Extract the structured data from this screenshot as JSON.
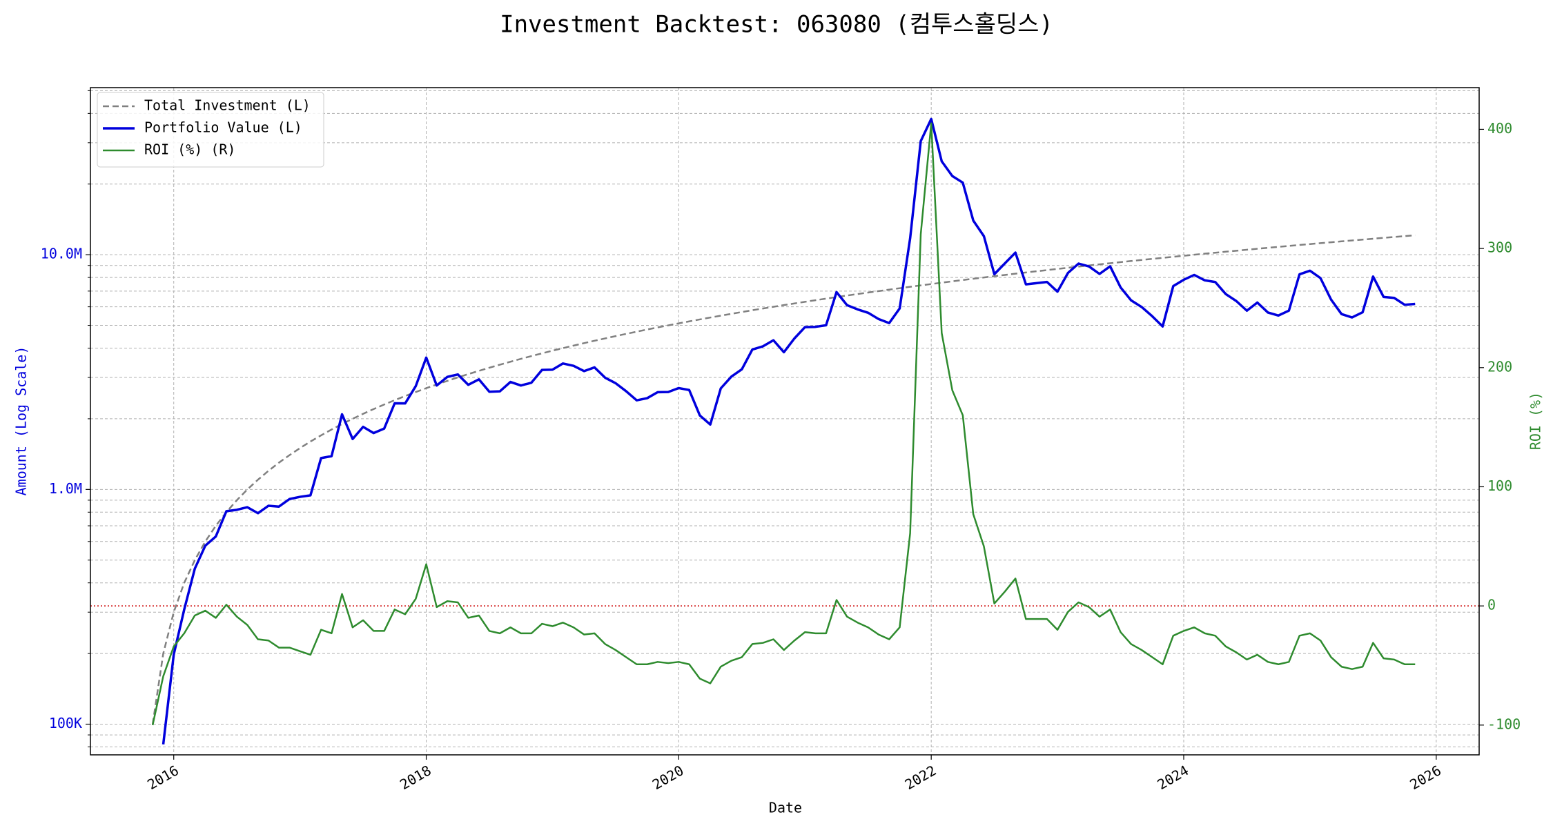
{
  "chart_data": {
    "type": "line",
    "title": "Investment Backtest: 063080 (컴투스홀딩스)",
    "xlabel": "Date",
    "ylabel": "Amount (Log Scale)",
    "y2label": "ROI (%)",
    "yscale": "log",
    "grid": true,
    "legend": "upper left",
    "xlim": [
      2015.34,
      2026.34
    ],
    "xticks": [
      2016,
      2018,
      2020,
      2022,
      2024,
      2026
    ],
    "ylim": [
      74000,
      51500000
    ],
    "yticks": [
      {
        "value": 100000,
        "label": "100K"
      },
      {
        "value": 1000000,
        "label": "1.0M"
      },
      {
        "value": 10000000,
        "label": "10.0M"
      }
    ],
    "y_minor_ticks": [
      80000,
      90000,
      200000,
      300000,
      400000,
      500000,
      600000,
      700000,
      800000,
      900000,
      2000000,
      3000000,
      4000000,
      5000000,
      6000000,
      7000000,
      8000000,
      9000000,
      20000000,
      30000000,
      40000000,
      50000000
    ],
    "y2lim": [
      -125,
      435
    ],
    "y2ticks": [
      -100,
      0,
      100,
      200,
      300,
      400
    ],
    "reference_line": {
      "value": 0,
      "axis": "y2",
      "color": "#cc0000"
    },
    "x": [
      2015.833,
      2015.917,
      2016,
      2016.083,
      2016.167,
      2016.25,
      2016.333,
      2016.417,
      2016.5,
      2016.583,
      2016.667,
      2016.75,
      2016.833,
      2016.917,
      2017,
      2017.083,
      2017.167,
      2017.25,
      2017.333,
      2017.417,
      2017.5,
      2017.583,
      2017.667,
      2017.75,
      2017.833,
      2017.917,
      2018,
      2018.083,
      2018.167,
      2018.25,
      2018.333,
      2018.417,
      2018.5,
      2018.583,
      2018.667,
      2018.75,
      2018.833,
      2018.917,
      2019,
      2019.083,
      2019.167,
      2019.25,
      2019.333,
      2019.417,
      2019.5,
      2019.583,
      2019.667,
      2019.75,
      2019.833,
      2019.917,
      2020,
      2020.083,
      2020.167,
      2020.25,
      2020.333,
      2020.417,
      2020.5,
      2020.583,
      2020.667,
      2020.75,
      2020.833,
      2020.917,
      2021,
      2021.083,
      2021.167,
      2021.25,
      2021.333,
      2021.417,
      2021.5,
      2021.583,
      2021.667,
      2021.75,
      2021.833,
      2021.917,
      2022,
      2022.083,
      2022.167,
      2022.25,
      2022.333,
      2022.417,
      2022.5,
      2022.583,
      2022.667,
      2022.75,
      2022.833,
      2022.917,
      2023,
      2023.083,
      2023.167,
      2023.25,
      2023.333,
      2023.417,
      2023.5,
      2023.583,
      2023.667,
      2023.75,
      2023.833,
      2023.917,
      2024,
      2024.083,
      2024.167,
      2024.25,
      2024.333,
      2024.417,
      2024.5,
      2024.583,
      2024.667,
      2024.75,
      2024.833,
      2024.917,
      2025,
      2025.083,
      2025.167,
      2025.25,
      2025.333,
      2025.417,
      2025.5,
      2025.583,
      2025.667,
      2025.75,
      2025.833
    ],
    "series": [
      {
        "name": "Total Investment (L)",
        "color": "#808080",
        "linestyle": "dashed",
        "axis": "y",
        "values": [
          100000,
          200000,
          300000,
          400000,
          500000,
          600000,
          700000,
          800000,
          900000,
          1000000,
          1100000,
          1200000,
          1300000,
          1400000,
          1500000,
          1600000,
          1700000,
          1800000,
          1900000,
          2000000,
          2100000,
          2200000,
          2300000,
          2400000,
          2500000,
          2600000,
          2700000,
          2800000,
          2900000,
          3000000,
          3100000,
          3200000,
          3300000,
          3400000,
          3500000,
          3600000,
          3700000,
          3800000,
          3900000,
          4000000,
          4100000,
          4200000,
          4300000,
          4400000,
          4500000,
          4600000,
          4700000,
          4800000,
          4900000,
          5000000,
          5100000,
          5200000,
          5300000,
          5400000,
          5500000,
          5600000,
          5700000,
          5800000,
          5900000,
          6000000,
          6100000,
          6200000,
          6300000,
          6400000,
          6500000,
          6600000,
          6700000,
          6800000,
          6900000,
          7000000,
          7100000,
          7200000,
          7300000,
          7400000,
          7500000,
          7600000,
          7700000,
          7800000,
          7900000,
          8000000,
          8100000,
          8200000,
          8300000,
          8400000,
          8500000,
          8600000,
          8700000,
          8800000,
          8900000,
          9000000,
          9100000,
          9200000,
          9300000,
          9400000,
          9500000,
          9600000,
          9700000,
          9800000,
          9900000,
          10000000,
          10100000,
          10200000,
          10300000,
          10400000,
          10500000,
          10600000,
          10700000,
          10800000,
          10900000,
          11000000,
          11100000,
          11200000,
          11300000,
          11400000,
          11500000,
          11600000,
          11700000,
          11800000,
          11900000,
          12000000,
          12100000
        ]
      },
      {
        "name": "Portfolio Value (L)",
        "color": "#0000dd",
        "linestyle": "solid",
        "axis": "y",
        "values": [
          null,
          82000,
          198000,
          308000,
          460000,
          576000,
          630000,
          808000,
          819000,
          840000,
          792000,
          852000,
          845000,
          910000,
          930000,
          944000,
          1360000,
          1386000,
          2090000,
          1640000,
          1848000,
          1738000,
          1817000,
          2328000,
          2325000,
          2756000,
          3645000,
          2772000,
          3016000,
          3090000,
          2790000,
          2944000,
          2607000,
          2618000,
          2870000,
          2772000,
          2849000,
          3230000,
          3237000,
          3440000,
          3362000,
          3192000,
          3311000,
          2992000,
          2835000,
          2622000,
          2397000,
          2448000,
          2597000,
          2600000,
          2703000,
          2652000,
          2067000,
          1890000,
          2695000,
          3024000,
          3249000,
          3944000,
          4071000,
          4320000,
          3843000,
          4402000,
          4914000,
          4928000,
          5005000,
          6930000,
          6097000,
          5848000,
          5658000,
          5320000,
          5112000,
          5904000,
          11753000,
          30488000,
          37875000,
          25004000,
          21637000,
          20280000,
          13983000,
          12000000,
          8262000,
          9184000,
          10209000,
          7476000,
          7565000,
          7654000,
          6960000,
          8360000,
          9167000,
          8910000,
          8281000,
          8924000,
          7254000,
          6392000,
          5985000,
          5472000,
          4947000,
          7350000,
          7821000,
          8200000,
          7777000,
          7650000,
          6798000,
          6344000,
          5775000,
          6254000,
          5671000,
          5508000,
          5777000,
          8250000,
          8547000,
          7952000,
          6441000,
          5586000,
          5405000,
          5684000,
          8073000,
          6608000,
          6545000,
          6120000,
          6171000
        ]
      },
      {
        "name": "ROI (%) (R)",
        "color": "#2e8b2e",
        "linestyle": "solid",
        "axis": "y2",
        "values": [
          -100,
          -59,
          -34,
          -23,
          -8,
          -4,
          -10,
          1,
          -9,
          -16,
          -28,
          -29,
          -35,
          -35,
          -38,
          -41,
          -20,
          -23,
          10,
          -18,
          -12,
          -21,
          -21,
          -3,
          -7,
          6,
          35,
          -1,
          4,
          3,
          -10,
          -8,
          -21,
          -23,
          -18,
          -23,
          -23,
          -15,
          -17,
          -14,
          -18,
          -24,
          -23,
          -32,
          -37,
          -43,
          -49,
          -49,
          -47,
          -48,
          -47,
          -49,
          -61,
          -65,
          -51,
          -46,
          -43,
          -32,
          -31,
          -28,
          -37,
          -29,
          -22,
          -23,
          -23,
          5,
          -9,
          -14,
          -18,
          -24,
          -28,
          -18,
          61,
          312,
          405,
          229,
          181,
          160,
          77,
          50,
          2,
          12,
          23,
          -11,
          -11,
          -11,
          -20,
          -5,
          3,
          -1,
          -9,
          -3,
          -22,
          -32,
          -37,
          -43,
          -49,
          -25,
          -21,
          -18,
          -23,
          -25,
          -34,
          -39,
          -45,
          -41,
          -47,
          -49,
          -47,
          -25,
          -23,
          -29,
          -43,
          -51,
          -53,
          -51,
          -31,
          -44,
          -45,
          -49,
          -49
        ]
      }
    ]
  }
}
